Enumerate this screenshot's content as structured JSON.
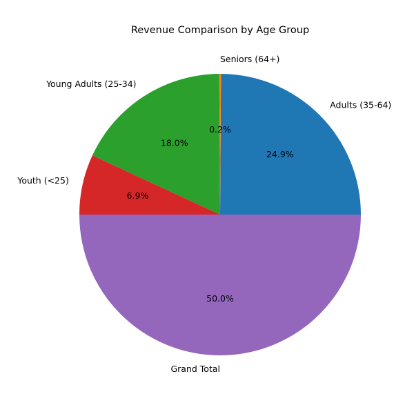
{
  "chart_data": {
    "type": "pie",
    "title": "Revenue Comparison by Age Group",
    "slices": [
      {
        "label": "Adults (35-64)",
        "percent": 24.9,
        "percent_label": "24.9%",
        "color": "#1f77b4"
      },
      {
        "label": "Seniors (64+)",
        "percent": 0.2,
        "percent_label": "0.2%",
        "color": "#ff7f0e"
      },
      {
        "label": "Young Adults (25-34)",
        "percent": 18.0,
        "percent_label": "18.0%",
        "color": "#2ca02c"
      },
      {
        "label": "Youth (<25)",
        "percent": 6.9,
        "percent_label": "6.9%",
        "color": "#d62728"
      },
      {
        "label": "Grand Total",
        "percent": 50.0,
        "percent_label": "50.0%",
        "color": "#9467bd"
      }
    ]
  }
}
